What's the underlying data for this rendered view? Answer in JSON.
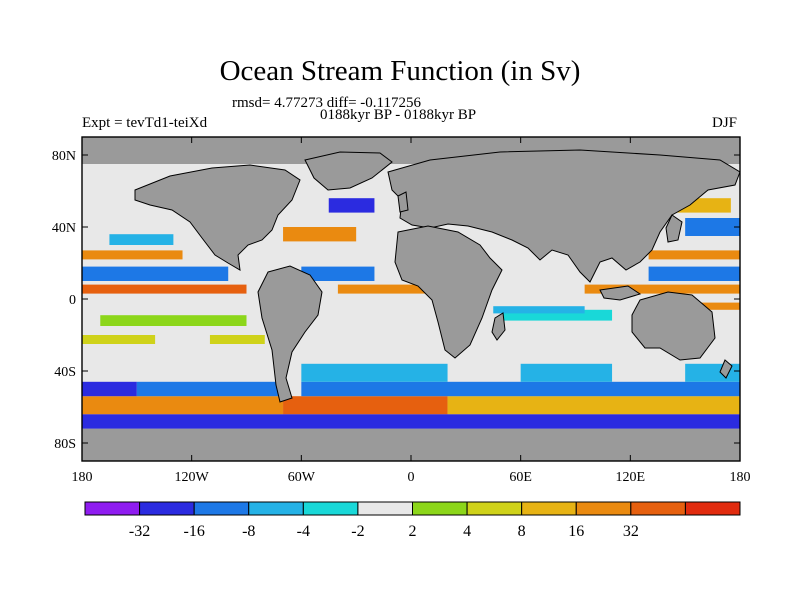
{
  "title": "Ocean Stream Function (in Sv)",
  "stats": {
    "rmsd_line": "rmsd= 4.77273 diff= -0.117256",
    "period_line": "0188kyr BP - 0188kyr BP",
    "experiment": "Expt = tevTd1-teiXd",
    "season": "DJF"
  },
  "map": {
    "projection": "cylindrical-equidistant",
    "lon_range": [
      -180,
      180
    ],
    "lat_range": [
      -90,
      90
    ],
    "land_color": "#9a9a9a",
    "x_ticks": [
      {
        "value": -180,
        "label": "180"
      },
      {
        "value": -120,
        "label": "120W"
      },
      {
        "value": -60,
        "label": "60W"
      },
      {
        "value": 0,
        "label": "0"
      },
      {
        "value": 60,
        "label": "60E"
      },
      {
        "value": 120,
        "label": "120E"
      },
      {
        "value": 180,
        "label": "180"
      }
    ],
    "y_ticks": [
      {
        "value": 80,
        "label": "80N"
      },
      {
        "value": 40,
        "label": "40N"
      },
      {
        "value": 0,
        "label": "0"
      },
      {
        "value": -40,
        "label": "40S"
      },
      {
        "value": -80,
        "label": "80S"
      }
    ]
  },
  "colorbar": {
    "colors": [
      "#8f1cf0",
      "#2b2be0",
      "#1d78e6",
      "#25b2e6",
      "#19d8d8",
      "#e8e8e8",
      "#8cd61a",
      "#cfd21a",
      "#e7b314",
      "#ea8a10",
      "#e6600f",
      "#e12b0e"
    ],
    "labels": [
      "-32",
      "-16",
      "-8",
      "-4",
      "-2",
      "2",
      "4",
      "8",
      "16",
      "32"
    ]
  },
  "field_bands": [
    {
      "lat": [
        -90,
        -72
      ],
      "lon": [
        -180,
        180
      ],
      "level": "land"
    },
    {
      "lat": [
        -72,
        -64
      ],
      "lon": [
        -180,
        180
      ],
      "level": 1
    },
    {
      "lat": [
        -64,
        -54
      ],
      "lon": [
        -180,
        -70
      ],
      "level": 9
    },
    {
      "lat": [
        -64,
        -54
      ],
      "lon": [
        -70,
        20
      ],
      "level": 10
    },
    {
      "lat": [
        -64,
        -54
      ],
      "lon": [
        20,
        180
      ],
      "level": 8
    },
    {
      "lat": [
        -54,
        -46
      ],
      "lon": [
        -180,
        -150
      ],
      "level": 1
    },
    {
      "lat": [
        -54,
        -46
      ],
      "lon": [
        -150,
        -70
      ],
      "level": 2
    },
    {
      "lat": [
        -54,
        -46
      ],
      "lon": [
        -60,
        180
      ],
      "level": 2
    },
    {
      "lat": [
        -46,
        -36
      ],
      "lon": [
        -60,
        20
      ],
      "level": 3
    },
    {
      "lat": [
        -46,
        -36
      ],
      "lon": [
        60,
        110
      ],
      "level": 3
    },
    {
      "lat": [
        -46,
        -36
      ],
      "lon": [
        150,
        180
      ],
      "level": 3
    },
    {
      "lat": [
        -25,
        -20
      ],
      "lon": [
        -180,
        -140
      ],
      "level": 7
    },
    {
      "lat": [
        -25,
        -20
      ],
      "lon": [
        -110,
        -80
      ],
      "level": 7
    },
    {
      "lat": [
        -15,
        -9
      ],
      "lon": [
        -170,
        -90
      ],
      "level": 6
    },
    {
      "lat": [
        -12,
        -6
      ],
      "lon": [
        50,
        110
      ],
      "level": 4
    },
    {
      "lat": [
        -8,
        -4
      ],
      "lon": [
        45,
        95
      ],
      "level": 3
    },
    {
      "lat": [
        -6,
        -2
      ],
      "lon": [
        140,
        180
      ],
      "level": 9
    },
    {
      "lat": [
        3,
        8
      ],
      "lon": [
        -180,
        -90
      ],
      "level": 10
    },
    {
      "lat": [
        3,
        8
      ],
      "lon": [
        -40,
        20
      ],
      "level": 9
    },
    {
      "lat": [
        3,
        8
      ],
      "lon": [
        95,
        180
      ],
      "level": 9
    },
    {
      "lat": [
        10,
        18
      ],
      "lon": [
        -180,
        -100
      ],
      "level": 2
    },
    {
      "lat": [
        10,
        18
      ],
      "lon": [
        -60,
        -20
      ],
      "level": 2
    },
    {
      "lat": [
        10,
        18
      ],
      "lon": [
        130,
        180
      ],
      "level": 2
    },
    {
      "lat": [
        22,
        27
      ],
      "lon": [
        -180,
        -125
      ],
      "level": 9
    },
    {
      "lat": [
        22,
        27
      ],
      "lon": [
        130,
        180
      ],
      "level": 9
    },
    {
      "lat": [
        30,
        36
      ],
      "lon": [
        -165,
        -130
      ],
      "level": 3
    },
    {
      "lat": [
        32,
        40
      ],
      "lon": [
        -70,
        -30
      ],
      "level": 9
    },
    {
      "lat": [
        35,
        45
      ],
      "lon": [
        150,
        180
      ],
      "level": 2
    },
    {
      "lat": [
        48,
        56
      ],
      "lon": [
        -45,
        -20
      ],
      "level": 1
    },
    {
      "lat": [
        48,
        56
      ],
      "lon": [
        145,
        175
      ],
      "level": 8
    },
    {
      "lat": [
        75,
        90
      ],
      "lon": [
        -180,
        180
      ],
      "level": "land"
    }
  ]
}
